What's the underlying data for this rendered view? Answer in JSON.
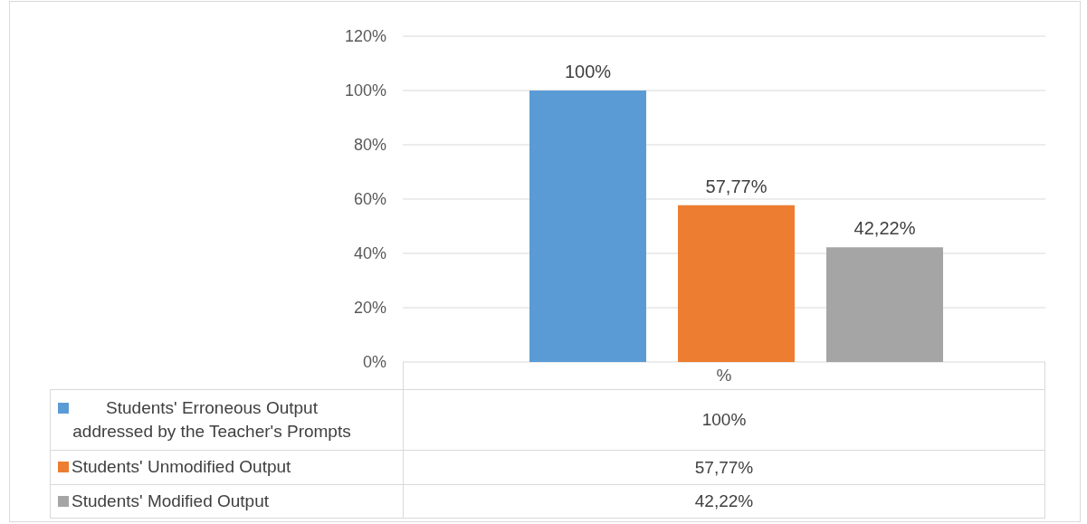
{
  "chart_data": {
    "type": "bar",
    "categories": [
      "%"
    ],
    "series": [
      {
        "name": "Students' Erroneous Output addressed by the Teacher's Prompts",
        "color": "#5b9bd5",
        "values": [
          100
        ],
        "value_labels": [
          "100%"
        ]
      },
      {
        "name": "Students' Unmodified Output",
        "color": "#ed7d31",
        "values": [
          57.77
        ],
        "value_labels": [
          "57,77%"
        ]
      },
      {
        "name": "Students' Modified Output",
        "color": "#a5a5a5",
        "values": [
          42.22
        ],
        "value_labels": [
          "42,22%"
        ]
      }
    ],
    "ylim": [
      0,
      120
    ],
    "yticks": [
      {
        "value": 0,
        "label": "0%"
      },
      {
        "value": 20,
        "label": "20%"
      },
      {
        "value": 40,
        "label": "40%"
      },
      {
        "value": 60,
        "label": "60%"
      },
      {
        "value": 80,
        "label": "80%"
      },
      {
        "value": 100,
        "label": "100%"
      },
      {
        "value": 120,
        "label": "120%"
      }
    ],
    "grid": "y",
    "legend": "bottom"
  }
}
